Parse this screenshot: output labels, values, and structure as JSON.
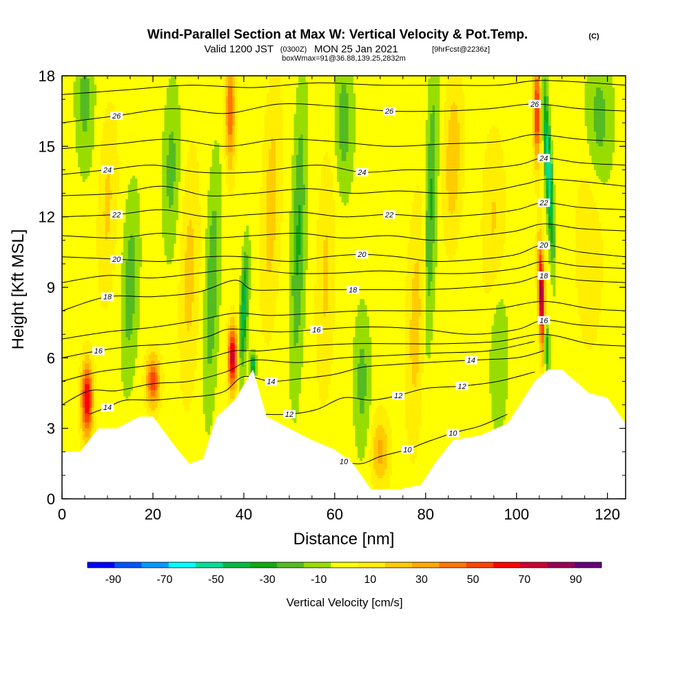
{
  "header": {
    "title": "Wind-Parallel Section at Max W: Vertical Velocity & Pot.Temp.",
    "copyright": "(C)",
    "valid_prefix": "Valid 1200 JST",
    "valid_zulu": "(0300Z)",
    "valid_date": "MON 25 Jan 2021",
    "forecast": "[9hrFcst@2236z]",
    "box_info": "boxWmax=91@36.88,139.25,2832m"
  },
  "chart_data": {
    "type": "heatmap",
    "xlabel": "Distance [nm]",
    "ylabel": "Height [Kft MSL]",
    "xlim": [
      0,
      124
    ],
    "ylim": [
      0,
      18
    ],
    "x_ticks": [
      "0",
      "20",
      "40",
      "60",
      "80",
      "100",
      "120"
    ],
    "y_ticks": [
      "0",
      "3",
      "6",
      "9",
      "12",
      "15",
      "18"
    ],
    "x_tick_values": [
      0,
      20,
      40,
      60,
      80,
      100,
      120
    ],
    "y_tick_values": [
      0,
      3,
      6,
      9,
      12,
      15,
      18
    ],
    "background_level_cm_s": 0,
    "colorbar": {
      "label": "Vertical Velocity [cm/s]",
      "tick_labels": [
        "-90",
        "-70",
        "-50",
        "-30",
        "-10",
        "10",
        "30",
        "50",
        "70",
        "90"
      ],
      "tick_values": [
        -90,
        -70,
        -50,
        -30,
        -10,
        10,
        30,
        50,
        70,
        90
      ],
      "range": [
        -100,
        100
      ],
      "colors": [
        "#0000ff",
        "#0055ff",
        "#0099ff",
        "#00ffff",
        "#00dd99",
        "#00bb44",
        "#11aa11",
        "#55bb22",
        "#99dd00",
        "#ffff00",
        "#ffee00",
        "#ffcc00",
        "#ffaa00",
        "#ff7700",
        "#ff4400",
        "#ff0000",
        "#cc0033",
        "#990055",
        "#660077"
      ]
    },
    "terrain": [
      [
        0,
        2
      ],
      [
        4,
        2
      ],
      [
        8,
        3
      ],
      [
        12,
        3
      ],
      [
        17,
        3.5
      ],
      [
        20,
        3.5
      ],
      [
        25,
        2.2
      ],
      [
        28,
        1.5
      ],
      [
        31,
        1.7
      ],
      [
        34,
        3.5
      ],
      [
        38,
        4.2
      ],
      [
        42,
        5.5
      ],
      [
        45,
        3.5
      ],
      [
        50,
        3
      ],
      [
        55,
        2.5
      ],
      [
        60,
        2.1
      ],
      [
        64,
        1.5
      ],
      [
        68,
        0.4
      ],
      [
        74,
        0.4
      ],
      [
        79,
        0.6
      ],
      [
        82,
        1.5
      ],
      [
        86,
        2.5
      ],
      [
        92,
        2.7
      ],
      [
        98,
        3.2
      ],
      [
        104,
        5
      ],
      [
        107,
        5.5
      ],
      [
        110,
        5.5
      ],
      [
        116,
        4.5
      ],
      [
        120,
        4.3
      ],
      [
        124,
        3.2
      ]
    ],
    "theta_contours": [
      {
        "label": "10",
        "points": [
          [
            58,
            2.0
          ],
          [
            62,
            1.6
          ],
          [
            66,
            1.5
          ],
          [
            70,
            1.8
          ],
          [
            76,
            2.1
          ],
          [
            80,
            2.4
          ],
          [
            86,
            2.8
          ],
          [
            92,
            3.1
          ],
          [
            98,
            3.6
          ]
        ]
      },
      {
        "label": "12",
        "points": [
          [
            44,
            3.6
          ],
          [
            50,
            3.6
          ],
          [
            56,
            3.8
          ],
          [
            62,
            4.3
          ],
          [
            68,
            4.2
          ],
          [
            74,
            4.4
          ],
          [
            80,
            4.7
          ],
          [
            88,
            4.8
          ],
          [
            96,
            5.0
          ],
          [
            104,
            5.4
          ]
        ]
      },
      {
        "label": "14",
        "points": [
          [
            6,
            3.6
          ],
          [
            10,
            3.9
          ],
          [
            14,
            4.2
          ],
          [
            20,
            4.2
          ],
          [
            26,
            4.3
          ],
          [
            32,
            4.4
          ],
          [
            36,
            4.6
          ],
          [
            40,
            5.2
          ],
          [
            46,
            5.0
          ],
          [
            52,
            5.1
          ],
          [
            60,
            5.3
          ],
          [
            66,
            5.6
          ],
          [
            72,
            5.7
          ],
          [
            80,
            5.8
          ],
          [
            90,
            5.9
          ],
          [
            100,
            6.0
          ],
          [
            106,
            6.3
          ]
        ]
      },
      {
        "label": "16",
        "points": [
          [
            0,
            6.0
          ],
          [
            8,
            6.3
          ],
          [
            16,
            6.5
          ],
          [
            24,
            6.6
          ],
          [
            32,
            6.9
          ],
          [
            36,
            7.2
          ],
          [
            40,
            7.2
          ],
          [
            48,
            7.1
          ],
          [
            56,
            7.2
          ],
          [
            64,
            7.3
          ],
          [
            72,
            7.3
          ],
          [
            80,
            7.2
          ],
          [
            90,
            7.0
          ],
          [
            100,
            7.2
          ],
          [
            106,
            7.6
          ],
          [
            114,
            7.4
          ],
          [
            124,
            7.3
          ]
        ]
      },
      {
        "label": "18",
        "points": [
          [
            0,
            8.0
          ],
          [
            10,
            8.6
          ],
          [
            20,
            8.6
          ],
          [
            30,
            8.8
          ],
          [
            38,
            9.3
          ],
          [
            42,
            8.9
          ],
          [
            50,
            8.9
          ],
          [
            58,
            8.9
          ],
          [
            64,
            8.9
          ],
          [
            72,
            8.9
          ],
          [
            80,
            8.9
          ],
          [
            90,
            9.0
          ],
          [
            100,
            9.2
          ],
          [
            106,
            9.5
          ],
          [
            114,
            9.3
          ],
          [
            124,
            9.2
          ]
        ]
      },
      {
        "label": "20",
        "points": [
          [
            0,
            10.3
          ],
          [
            12,
            10.2
          ],
          [
            22,
            10.1
          ],
          [
            32,
            10.3
          ],
          [
            40,
            10.3
          ],
          [
            50,
            10.1
          ],
          [
            58,
            10.3
          ],
          [
            66,
            10.4
          ],
          [
            74,
            10.3
          ],
          [
            82,
            10.1
          ],
          [
            92,
            10.2
          ],
          [
            100,
            10.4
          ],
          [
            106,
            10.8
          ],
          [
            114,
            10.5
          ],
          [
            124,
            10.3
          ]
        ]
      },
      {
        "label": "22",
        "points": [
          [
            0,
            12.0
          ],
          [
            12,
            12.1
          ],
          [
            22,
            12.3
          ],
          [
            32,
            12.0
          ],
          [
            42,
            12.1
          ],
          [
            52,
            12.2
          ],
          [
            62,
            12.0
          ],
          [
            72,
            12.1
          ],
          [
            82,
            12.0
          ],
          [
            92,
            12.1
          ],
          [
            100,
            12.3
          ],
          [
            106,
            12.6
          ],
          [
            114,
            12.4
          ],
          [
            124,
            12.3
          ]
        ]
      },
      {
        "label": "24",
        "points": [
          [
            0,
            13.8
          ],
          [
            10,
            14.0
          ],
          [
            20,
            14.2
          ],
          [
            30,
            13.9
          ],
          [
            42,
            13.9
          ],
          [
            56,
            14.2
          ],
          [
            66,
            13.9
          ],
          [
            76,
            14.0
          ],
          [
            88,
            14.0
          ],
          [
            100,
            14.2
          ],
          [
            106,
            14.5
          ],
          [
            114,
            14.3
          ],
          [
            124,
            14.2
          ]
        ]
      },
      {
        "label": "26",
        "points": [
          [
            0,
            16.0
          ],
          [
            12,
            16.3
          ],
          [
            24,
            16.6
          ],
          [
            36,
            16.4
          ],
          [
            48,
            16.8
          ],
          [
            60,
            16.7
          ],
          [
            72,
            16.5
          ],
          [
            84,
            16.5
          ],
          [
            94,
            16.6
          ],
          [
            104,
            16.8
          ],
          [
            114,
            16.6
          ],
          [
            124,
            16.5
          ]
        ]
      }
    ],
    "extra_theta_contours": [
      [
        [
          0,
          4.0
        ],
        [
          6,
          4.6
        ],
        [
          12,
          4.6
        ],
        [
          20,
          4.9
        ],
        [
          28,
          5.0
        ],
        [
          36,
          5.4
        ],
        [
          42,
          5.9
        ],
        [
          52,
          5.8
        ],
        [
          62,
          6.0
        ],
        [
          72,
          6.1
        ],
        [
          82,
          6.2
        ],
        [
          94,
          6.3
        ],
        [
          104,
          6.7
        ]
      ],
      [
        [
          0,
          5.0
        ],
        [
          8,
          5.4
        ],
        [
          16,
          5.6
        ],
        [
          24,
          5.8
        ],
        [
          32,
          6.0
        ],
        [
          38,
          6.3
        ],
        [
          44,
          6.3
        ],
        [
          54,
          6.5
        ],
        [
          64,
          6.6
        ],
        [
          74,
          6.6
        ],
        [
          84,
          6.6
        ],
        [
          96,
          6.7
        ],
        [
          106,
          7.0
        ],
        [
          116,
          6.6
        ],
        [
          124,
          6.5
        ]
      ],
      [
        [
          0,
          6.8
        ],
        [
          10,
          7.1
        ],
        [
          20,
          7.3
        ],
        [
          30,
          7.6
        ],
        [
          38,
          7.9
        ],
        [
          46,
          7.8
        ],
        [
          56,
          7.9
        ],
        [
          66,
          8.0
        ],
        [
          76,
          8.0
        ],
        [
          86,
          8.0
        ],
        [
          96,
          8.1
        ],
        [
          106,
          8.4
        ],
        [
          116,
          8.1
        ],
        [
          124,
          8.0
        ]
      ],
      [
        [
          0,
          9.2
        ],
        [
          10,
          9.5
        ],
        [
          20,
          9.4
        ],
        [
          30,
          9.6
        ],
        [
          40,
          9.8
        ],
        [
          50,
          9.6
        ],
        [
          60,
          9.6
        ],
        [
          70,
          9.7
        ],
        [
          80,
          9.6
        ],
        [
          90,
          9.6
        ],
        [
          100,
          9.8
        ],
        [
          106,
          10.1
        ],
        [
          114,
          9.9
        ],
        [
          124,
          9.8
        ]
      ],
      [
        [
          0,
          11.2
        ],
        [
          12,
          11.1
        ],
        [
          22,
          11.3
        ],
        [
          32,
          11.1
        ],
        [
          42,
          11.2
        ],
        [
          52,
          11.3
        ],
        [
          62,
          11.1
        ],
        [
          72,
          11.2
        ],
        [
          82,
          11.0
        ],
        [
          92,
          11.2
        ],
        [
          100,
          11.4
        ],
        [
          106,
          11.7
        ],
        [
          114,
          11.5
        ],
        [
          124,
          11.4
        ]
      ],
      [
        [
          0,
          12.9
        ],
        [
          12,
          13.0
        ],
        [
          22,
          13.3
        ],
        [
          32,
          12.9
        ],
        [
          42,
          13.0
        ],
        [
          54,
          13.2
        ],
        [
          64,
          13.0
        ],
        [
          74,
          13.1
        ],
        [
          84,
          13.0
        ],
        [
          94,
          13.1
        ],
        [
          102,
          13.4
        ],
        [
          108,
          13.6
        ],
        [
          124,
          13.3
        ]
      ],
      [
        [
          0,
          14.9
        ],
        [
          12,
          15.1
        ],
        [
          24,
          15.3
        ],
        [
          36,
          15.0
        ],
        [
          48,
          15.3
        ],
        [
          60,
          15.2
        ],
        [
          72,
          15.0
        ],
        [
          84,
          15.1
        ],
        [
          96,
          15.2
        ],
        [
          104,
          15.5
        ],
        [
          114,
          15.3
        ],
        [
          124,
          15.2
        ]
      ],
      [
        [
          0,
          17.2
        ],
        [
          14,
          17.4
        ],
        [
          28,
          17.6
        ],
        [
          42,
          17.5
        ],
        [
          56,
          17.7
        ],
        [
          70,
          17.6
        ],
        [
          84,
          17.6
        ],
        [
          96,
          17.6
        ],
        [
          106,
          17.8
        ],
        [
          124,
          17.6
        ]
      ]
    ],
    "w_cells": [
      {
        "x": 5.5,
        "y": 4.2,
        "w": 70,
        "sx": 1.3,
        "sy": 1.6,
        "tilt": 0
      },
      {
        "x": 20,
        "y": 5.0,
        "w": 55,
        "sx": 1.5,
        "sy": 1.1,
        "tilt": 0
      },
      {
        "x": 37.5,
        "y": 6.0,
        "w": 75,
        "sx": 1.0,
        "sy": 1.4,
        "tilt": 0
      },
      {
        "x": 105.5,
        "y": 8.5,
        "w": 91,
        "sx": 0.7,
        "sy": 2.3,
        "tilt": -0.15
      },
      {
        "x": 37,
        "y": 16.5,
        "w": 45,
        "sx": 1.1,
        "sy": 2.5,
        "tilt": 0
      },
      {
        "x": 104.5,
        "y": 16.5,
        "w": 60,
        "sx": 0.8,
        "sy": 2.2,
        "tilt": 0
      },
      {
        "x": 10,
        "y": 12.5,
        "w": 18,
        "sx": 2.0,
        "sy": 4.0,
        "tilt": 0.15
      },
      {
        "x": 28,
        "y": 9.5,
        "w": 20,
        "sx": 2.0,
        "sy": 5.0,
        "tilt": 0.1
      },
      {
        "x": 46,
        "y": 12.5,
        "w": 22,
        "sx": 2.0,
        "sy": 5.0,
        "tilt": 0.15
      },
      {
        "x": 58,
        "y": 9.5,
        "w": 18,
        "sx": 2.0,
        "sy": 5.0,
        "tilt": 0.1
      },
      {
        "x": 70,
        "y": 2.0,
        "w": 30,
        "sx": 2.0,
        "sy": 1.5,
        "tilt": 0
      },
      {
        "x": 78,
        "y": 7.5,
        "w": 22,
        "sx": 2.2,
        "sy": 5.0,
        "tilt": 0.12
      },
      {
        "x": 86,
        "y": 14.5,
        "w": 25,
        "sx": 2.0,
        "sy": 3.5,
        "tilt": 0.12
      },
      {
        "x": 95,
        "y": 11.5,
        "w": 18,
        "sx": 2.5,
        "sy": 4.0,
        "tilt": 0
      },
      {
        "x": 116,
        "y": 11.0,
        "w": 15,
        "sx": 3.0,
        "sy": 4.5,
        "tilt": 0
      },
      {
        "x": 5,
        "y": 17.0,
        "w": -20,
        "sx": 2.0,
        "sy": 3.0,
        "tilt": 0
      },
      {
        "x": 15,
        "y": 9.0,
        "w": -22,
        "sx": 1.8,
        "sy": 4.0,
        "tilt": 0.15
      },
      {
        "x": 24,
        "y": 14.0,
        "w": -20,
        "sx": 1.8,
        "sy": 3.5,
        "tilt": 0.1
      },
      {
        "x": 33,
        "y": 9.0,
        "w": -25,
        "sx": 1.5,
        "sy": 5.0,
        "tilt": 0.15
      },
      {
        "x": 40,
        "y": 8.0,
        "w": -45,
        "sx": 0.8,
        "sy": 2.5,
        "tilt": 0.2
      },
      {
        "x": 52,
        "y": 11.0,
        "w": -28,
        "sx": 1.5,
        "sy": 6.0,
        "tilt": 0.12
      },
      {
        "x": 62,
        "y": 16.0,
        "w": -22,
        "sx": 2.0,
        "sy": 3.0,
        "tilt": 0
      },
      {
        "x": 66,
        "y": 5.0,
        "w": -20,
        "sx": 1.8,
        "sy": 3.0,
        "tilt": 0
      },
      {
        "x": 81,
        "y": 12.0,
        "w": -30,
        "sx": 1.3,
        "sy": 6.0,
        "tilt": 0.15
      },
      {
        "x": 96,
        "y": 6.5,
        "w": -18,
        "sx": 2.0,
        "sy": 3.5,
        "tilt": 0
      },
      {
        "x": 107,
        "y": 14.0,
        "w": -60,
        "sx": 0.7,
        "sy": 3.5,
        "tilt": -0.25
      },
      {
        "x": 106.5,
        "y": 6.5,
        "w": -50,
        "sx": 0.6,
        "sy": 1.2,
        "tilt": -0.2
      },
      {
        "x": 118,
        "y": 16.0,
        "w": -22,
        "sx": 3.0,
        "sy": 3.0,
        "tilt": 0
      },
      {
        "x": 42,
        "y": 5.7,
        "w": -45,
        "sx": 0.7,
        "sy": 0.5,
        "tilt": 0
      }
    ]
  }
}
